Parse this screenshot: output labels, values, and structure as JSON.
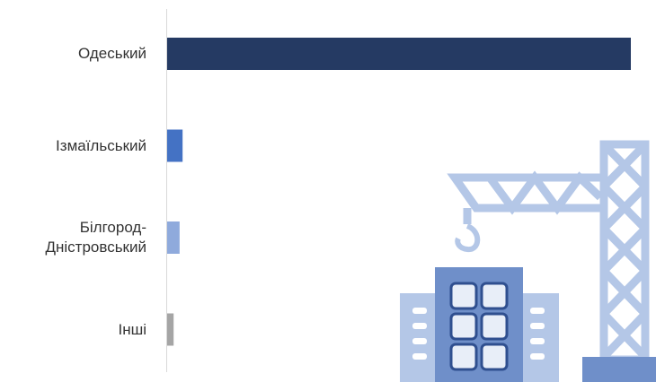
{
  "chart_data": {
    "type": "bar",
    "orientation": "horizontal",
    "categories": [
      "Одеський",
      "Ізмаїльський",
      "Білгород-Дністровський",
      "Інші"
    ],
    "values": [
      93.1,
      3.1,
      2.5,
      1.3
    ],
    "colors": [
      "#253a63",
      "#4472c4",
      "#8faadc",
      "#a5a5a5"
    ]
  }
}
